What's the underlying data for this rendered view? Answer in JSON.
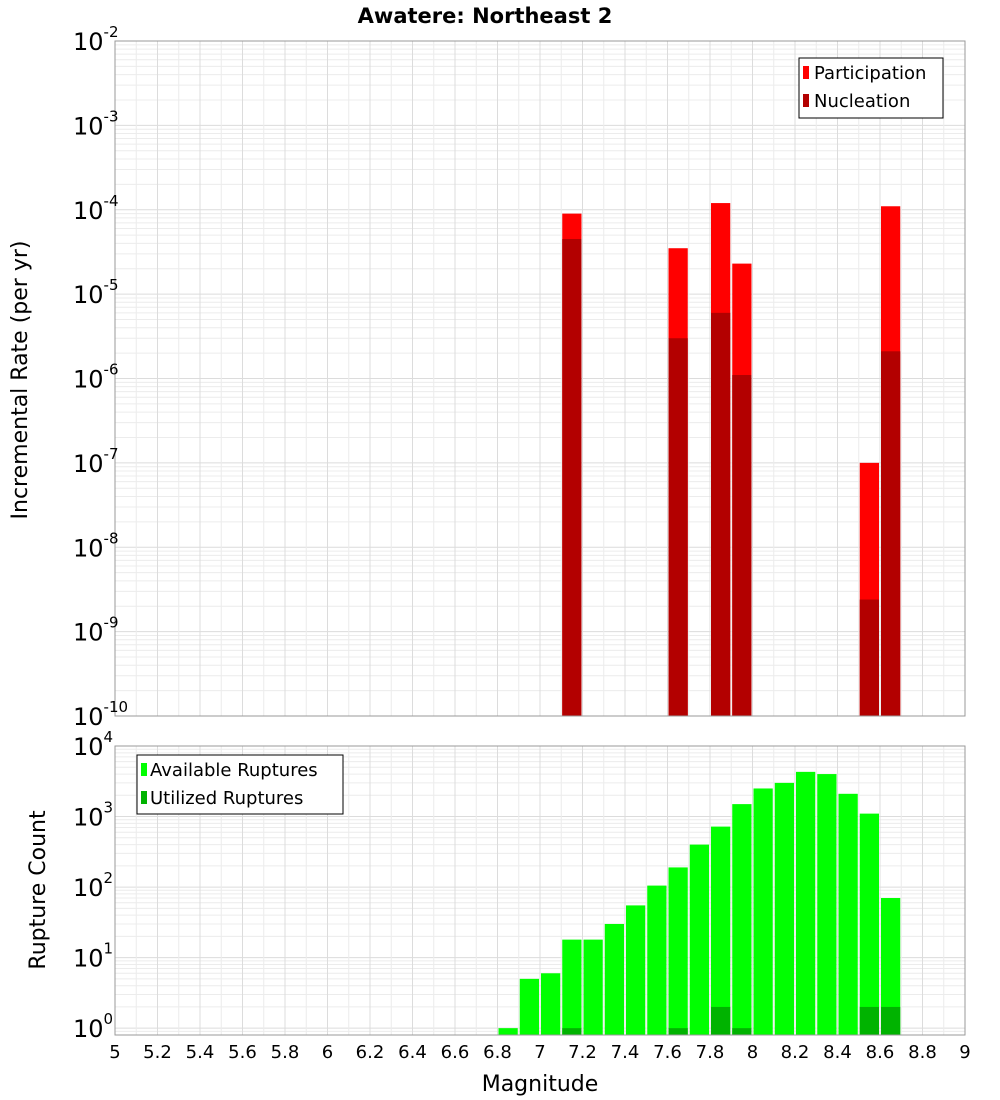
{
  "chart_data": [
    {
      "type": "bar",
      "title": "Awatere: Northeast 2",
      "xlabel": "Magnitude",
      "ylabel": "Incremental Rate (per yr)",
      "xlim": [
        5,
        9
      ],
      "ylim": [
        1e-10,
        0.01
      ],
      "yscale": "log",
      "bin_width": 0.1,
      "y_ticks": [
        {
          "base": "10",
          "exp": "-10",
          "value": 1e-10
        },
        {
          "base": "10",
          "exp": "-9",
          "value": 1e-09
        },
        {
          "base": "10",
          "exp": "-8",
          "value": 1e-08
        },
        {
          "base": "10",
          "exp": "-7",
          "value": 1e-07
        },
        {
          "base": "10",
          "exp": "-6",
          "value": 1e-06
        },
        {
          "base": "10",
          "exp": "-5",
          "value": 1e-05
        },
        {
          "base": "10",
          "exp": "-4",
          "value": 0.0001
        },
        {
          "base": "10",
          "exp": "-3",
          "value": 0.001
        },
        {
          "base": "10",
          "exp": "-2",
          "value": 0.01
        }
      ],
      "legend": {
        "position": "top-right",
        "entries": [
          "Participation",
          "Nucleation"
        ]
      },
      "series": [
        {
          "name": "Participation",
          "color": "#ff0000",
          "points": [
            [
              7.15,
              9e-05
            ],
            [
              7.65,
              3.5e-05
            ],
            [
              7.85,
              0.00012
            ],
            [
              7.95,
              2.3e-05
            ],
            [
              8.55,
              1e-07
            ],
            [
              8.65,
              0.00011
            ]
          ]
        },
        {
          "name": "Nucleation",
          "color": "#b30000",
          "points": [
            [
              7.15,
              4.5e-05
            ],
            [
              7.65,
              3e-06
            ],
            [
              7.85,
              6e-06
            ],
            [
              7.95,
              1.1e-06
            ],
            [
              8.55,
              2.4e-09
            ],
            [
              8.65,
              2.1e-06
            ]
          ]
        }
      ]
    },
    {
      "type": "bar",
      "xlabel": "Magnitude",
      "ylabel": "Rupture Count",
      "xlim": [
        5,
        9
      ],
      "ylim": [
        0.8,
        10000
      ],
      "yscale": "log",
      "bin_width": 0.1,
      "x_ticks": [
        "5",
        "5.2",
        "5.4",
        "5.6",
        "5.8",
        "6",
        "6.2",
        "6.4",
        "6.6",
        "6.8",
        "7",
        "7.2",
        "7.4",
        "7.6",
        "7.8",
        "8",
        "8.2",
        "8.4",
        "8.6",
        "8.8",
        "9"
      ],
      "y_ticks": [
        {
          "base": "10",
          "exp": "0",
          "value": 1
        },
        {
          "base": "10",
          "exp": "1",
          "value": 10
        },
        {
          "base": "10",
          "exp": "2",
          "value": 100
        },
        {
          "base": "10",
          "exp": "3",
          "value": 1000
        },
        {
          "base": "10",
          "exp": "4",
          "value": 10000
        }
      ],
      "legend": {
        "position": "top-left",
        "entries": [
          "Available Ruptures",
          "Utilized Ruptures"
        ]
      },
      "series": [
        {
          "name": "Available Ruptures",
          "color": "#00ff00",
          "points": [
            [
              6.85,
              1
            ],
            [
              6.95,
              5
            ],
            [
              7.05,
              6
            ],
            [
              7.15,
              18
            ],
            [
              7.25,
              18
            ],
            [
              7.35,
              30
            ],
            [
              7.45,
              55
            ],
            [
              7.55,
              105
            ],
            [
              7.65,
              190
            ],
            [
              7.75,
              400
            ],
            [
              7.85,
              720
            ],
            [
              7.95,
              1500
            ],
            [
              8.05,
              2500
            ],
            [
              8.15,
              3000
            ],
            [
              8.25,
              4300
            ],
            [
              8.35,
              4000
            ],
            [
              8.45,
              2100
            ],
            [
              8.55,
              1100
            ],
            [
              8.65,
              70
            ]
          ]
        },
        {
          "name": "Utilized Ruptures",
          "color": "#00b300",
          "points": [
            [
              7.15,
              1
            ],
            [
              7.65,
              1
            ],
            [
              7.85,
              2
            ],
            [
              7.95,
              1
            ],
            [
              8.55,
              2
            ],
            [
              8.65,
              2
            ]
          ]
        }
      ]
    }
  ]
}
